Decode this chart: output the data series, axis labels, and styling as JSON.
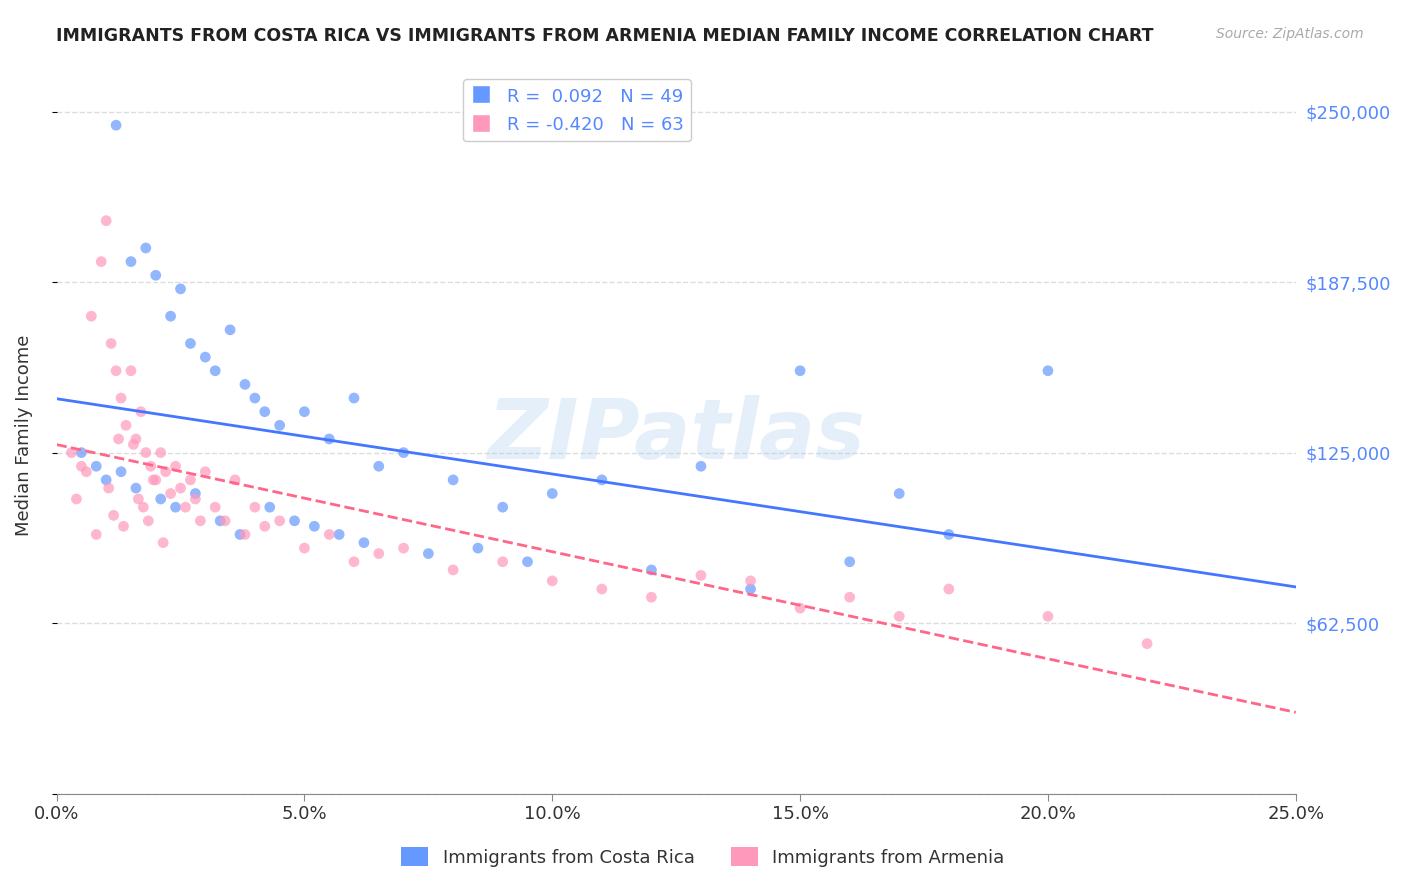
{
  "title": "IMMIGRANTS FROM COSTA RICA VS IMMIGRANTS FROM ARMENIA MEDIAN FAMILY INCOME CORRELATION CHART",
  "source": "Source: ZipAtlas.com",
  "ylabel": "Median Family Income",
  "xlabel_ticks": [
    "0.0%",
    "5.0%",
    "10.0%",
    "15.0%",
    "20.0%",
    "25.0%"
  ],
  "xlabel_vals": [
    0.0,
    5.0,
    10.0,
    15.0,
    20.0,
    25.0
  ],
  "xlim": [
    0.0,
    25.0
  ],
  "ylim": [
    0,
    262500
  ],
  "ytick_vals": [
    0,
    62500,
    125000,
    187500,
    250000
  ],
  "ytick_labels": [
    "",
    "$62,500",
    "$125,000",
    "$187,500",
    "$250,000"
  ],
  "color_blue": "#6699ff",
  "color_pink": "#ff99bb",
  "color_trendline_blue": "#4477ff",
  "color_trendline_pink": "#ff6688",
  "legend_r1": "R =  0.092",
  "legend_n1": "N = 49",
  "legend_r2": "R = -0.420",
  "legend_n2": "N = 63",
  "label_cr": "Immigrants from Costa Rica",
  "label_arm": "Immigrants from Armenia",
  "watermark": "ZIPatlas",
  "grid_color": "#dddddd",
  "scatter_cr_x": [
    1.2,
    1.5,
    1.8,
    2.0,
    2.3,
    2.5,
    2.7,
    3.0,
    3.2,
    3.5,
    3.8,
    4.0,
    4.2,
    4.5,
    5.0,
    5.5,
    6.0,
    6.5,
    7.0,
    8.0,
    9.0,
    10.0,
    11.0,
    13.0,
    15.0,
    17.0,
    18.0,
    20.0,
    0.5,
    0.8,
    1.0,
    1.3,
    1.6,
    2.1,
    2.4,
    2.8,
    3.3,
    3.7,
    4.3,
    4.8,
    5.2,
    5.7,
    6.2,
    7.5,
    8.5,
    9.5,
    12.0,
    14.0,
    16.0
  ],
  "scatter_cr_y": [
    245000,
    195000,
    200000,
    190000,
    175000,
    185000,
    165000,
    160000,
    155000,
    170000,
    150000,
    145000,
    140000,
    135000,
    140000,
    130000,
    145000,
    120000,
    125000,
    115000,
    105000,
    110000,
    115000,
    120000,
    155000,
    110000,
    95000,
    155000,
    125000,
    120000,
    115000,
    118000,
    112000,
    108000,
    105000,
    110000,
    100000,
    95000,
    105000,
    100000,
    98000,
    95000,
    92000,
    88000,
    90000,
    85000,
    82000,
    75000,
    85000
  ],
  "scatter_arm_x": [
    0.3,
    0.5,
    0.7,
    0.9,
    1.0,
    1.1,
    1.2,
    1.3,
    1.4,
    1.5,
    1.6,
    1.7,
    1.8,
    1.9,
    2.0,
    2.1,
    2.2,
    2.3,
    2.4,
    2.5,
    2.6,
    2.7,
    2.8,
    2.9,
    3.0,
    3.2,
    3.4,
    3.6,
    3.8,
    4.0,
    4.2,
    4.5,
    5.0,
    5.5,
    6.0,
    6.5,
    7.0,
    8.0,
    9.0,
    10.0,
    11.0,
    12.0,
    13.0,
    14.0,
    15.0,
    16.0,
    17.0,
    18.0,
    20.0,
    22.0,
    0.4,
    0.6,
    0.8,
    1.05,
    1.15,
    1.25,
    1.35,
    1.55,
    1.65,
    1.75,
    1.85,
    1.95,
    2.15
  ],
  "scatter_arm_y": [
    125000,
    120000,
    175000,
    195000,
    210000,
    165000,
    155000,
    145000,
    135000,
    155000,
    130000,
    140000,
    125000,
    120000,
    115000,
    125000,
    118000,
    110000,
    120000,
    112000,
    105000,
    115000,
    108000,
    100000,
    118000,
    105000,
    100000,
    115000,
    95000,
    105000,
    98000,
    100000,
    90000,
    95000,
    85000,
    88000,
    90000,
    82000,
    85000,
    78000,
    75000,
    72000,
    80000,
    78000,
    68000,
    72000,
    65000,
    75000,
    65000,
    55000,
    108000,
    118000,
    95000,
    112000,
    102000,
    130000,
    98000,
    128000,
    108000,
    105000,
    100000,
    115000,
    92000
  ]
}
